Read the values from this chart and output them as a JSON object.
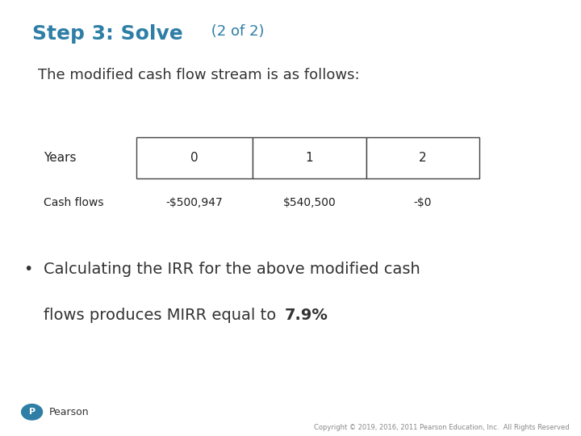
{
  "title_bold": "Step 3: Solve",
  "title_light": " (2 of 2)",
  "subtitle": "The modified cash flow stream is as follows:",
  "table_headers": [
    "0",
    "1",
    "2"
  ],
  "row_label_years": "Years",
  "row_label_cashflows": "Cash flows",
  "cash_flow_values": [
    "-$500,947",
    "$540,500",
    "-$0"
  ],
  "bullet_line1": "Calculating the IRR for the above modified cash",
  "bullet_line2_normal": "flows produces MIRR equal to ",
  "bullet_line2_bold": "7.9%",
  "title_color": "#2E7EA6",
  "body_text_color": "#333333",
  "table_text_color": "#222222",
  "background_color": "#FFFFFF",
  "pearson_logo_color": "#2E7EA6",
  "footer_text": "Copyright © 2019, 2016, 2011 Pearson Education, Inc.  All Rights Reserved",
  "title_bold_fontsize": 18,
  "title_light_fontsize": 13,
  "subtitle_fontsize": 13,
  "table_header_fontsize": 11,
  "table_cf_fontsize": 10,
  "body_fontsize": 14,
  "footer_fontsize": 6
}
